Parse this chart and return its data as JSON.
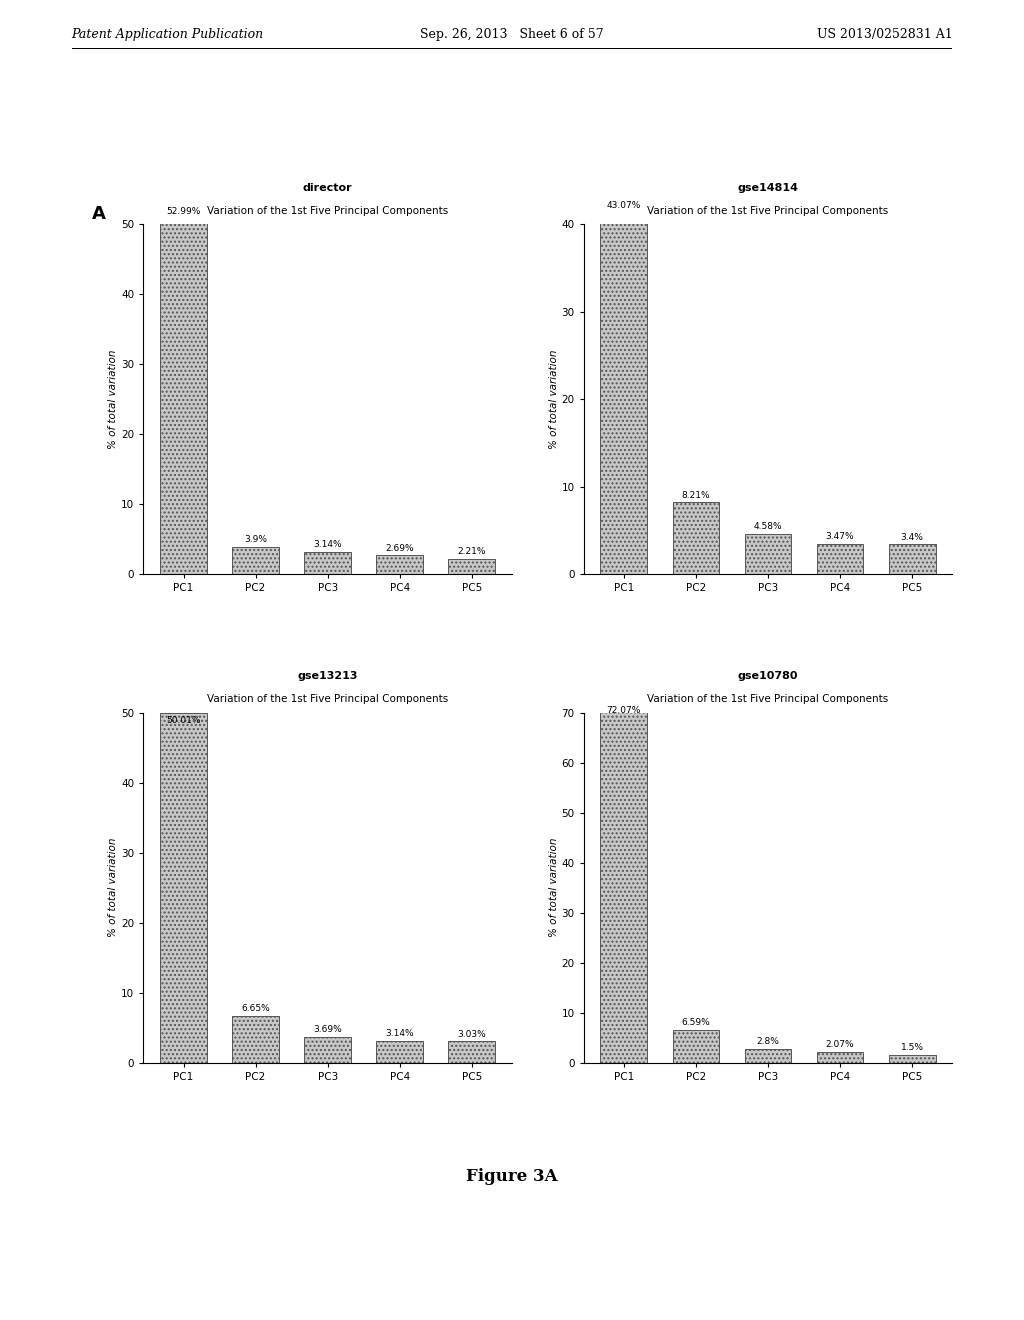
{
  "charts": [
    {
      "title": "director",
      "subtitle": "Variation of the 1st Five Principal Components",
      "categories": [
        "PC1",
        "PC2",
        "PC3",
        "PC4",
        "PC5"
      ],
      "values": [
        52.99,
        3.9,
        3.14,
        2.69,
        2.21
      ],
      "labels": [
        "52.99%",
        "3.9%",
        "3.14%",
        "2.69%",
        "2.21%"
      ],
      "ylim": [
        0,
        50
      ],
      "yticks": [
        0,
        10,
        20,
        30,
        40,
        50
      ]
    },
    {
      "title": "gse14814",
      "subtitle": "Variation of the 1st Five Principal Components",
      "categories": [
        "PC1",
        "PC2",
        "PC3",
        "PC4",
        "PC5"
      ],
      "values": [
        43.07,
        8.21,
        4.58,
        3.47,
        3.4
      ],
      "labels": [
        "43.07%",
        "8.21%",
        "4.58%",
        "3.47%",
        "3.4%"
      ],
      "ylim": [
        0,
        40
      ],
      "yticks": [
        0,
        10,
        20,
        30,
        40
      ]
    },
    {
      "title": "gse13213",
      "subtitle": "Variation of the 1st Five Principal Components",
      "categories": [
        "PC1",
        "PC2",
        "PC3",
        "PC4",
        "PC5"
      ],
      "values": [
        50.01,
        6.65,
        3.69,
        3.14,
        3.03
      ],
      "labels": [
        "50.01%",
        "6.65%",
        "3.69%",
        "3.14%",
        "3.03%"
      ],
      "ylim": [
        0,
        50
      ],
      "yticks": [
        0,
        10,
        20,
        30,
        40,
        50
      ]
    },
    {
      "title": "gse10780",
      "subtitle": "Variation of the 1st Five Principal Components",
      "categories": [
        "PC1",
        "PC2",
        "PC3",
        "PC4",
        "PC5"
      ],
      "values": [
        72.07,
        6.59,
        2.8,
        2.07,
        1.5
      ],
      "labels": [
        "72.07%",
        "6.59%",
        "2.8%",
        "2.07%",
        "1.5%"
      ],
      "ylim": [
        0,
        70
      ],
      "yticks": [
        0,
        10,
        20,
        30,
        40,
        50,
        60,
        70
      ]
    }
  ],
  "bar_color": "#c8c8c8",
  "bar_edgecolor": "#555555",
  "background_color": "#ffffff",
  "ylabel": "% of total variation",
  "figure_label": "A",
  "figure_caption": "Figure 3A",
  "header_left": "Patent Application Publication",
  "header_center": "Sep. 26, 2013   Sheet 6 of 57",
  "header_right": "US 2013/0252831 A1"
}
